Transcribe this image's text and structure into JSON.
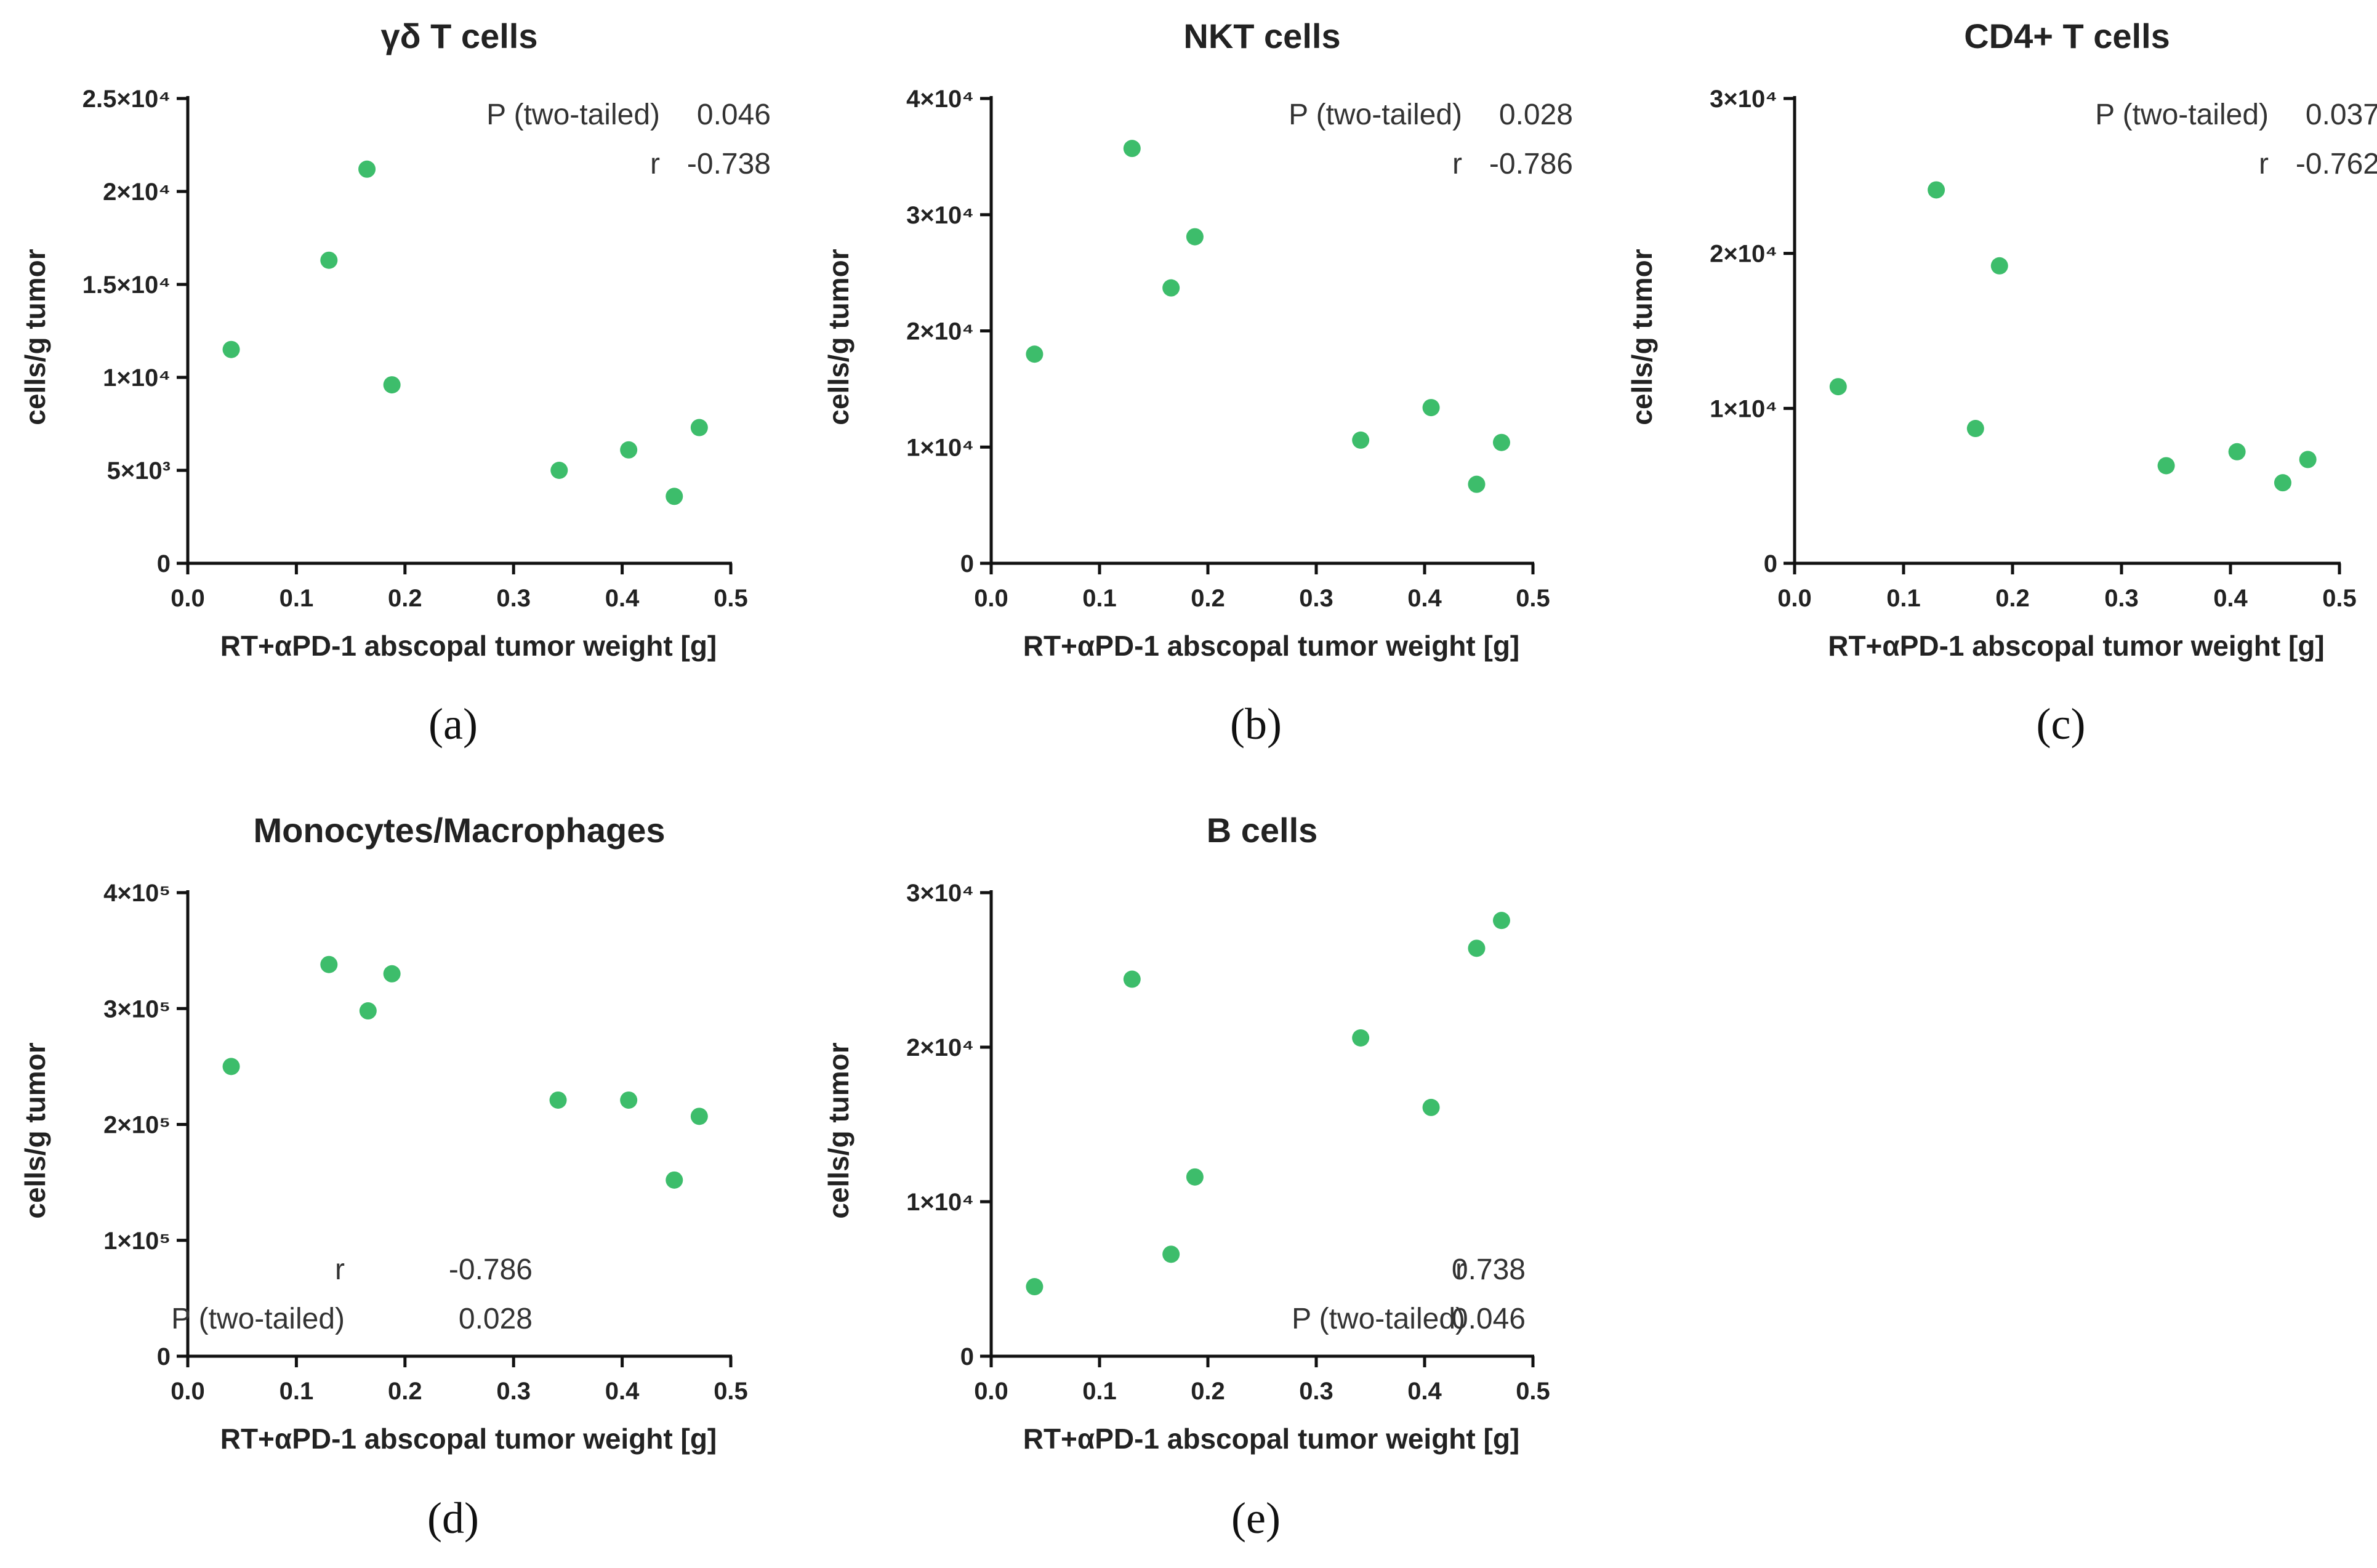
{
  "chart_data": [
    {
      "id": "a",
      "type": "scatter",
      "title": "γδ T cells",
      "xlabel": "RT+αPD-1 abscopal tumor weight [g]",
      "ylabel": "cells/g tumor",
      "xlim": [
        0,
        0.5
      ],
      "ylim": [
        0,
        25000
      ],
      "xticks": [
        "0.0",
        "0.1",
        "0.2",
        "0.3",
        "0.4",
        "0.5"
      ],
      "yticks": [
        {
          "value": 0,
          "label": "0"
        },
        {
          "value": 5000,
          "label": "5×10³"
        },
        {
          "value": 10000,
          "label": "1×10⁴"
        },
        {
          "value": 15000,
          "label": "1.5×10⁴"
        },
        {
          "value": 20000,
          "label": "2×10⁴"
        },
        {
          "value": 25000,
          "label": "2.5×10⁴"
        }
      ],
      "points": [
        {
          "x": 0.04,
          "y": 11500
        },
        {
          "x": 0.13,
          "y": 16300
        },
        {
          "x": 0.165,
          "y": 21200
        },
        {
          "x": 0.188,
          "y": 9600
        },
        {
          "x": 0.342,
          "y": 5000
        },
        {
          "x": 0.406,
          "y": 6100
        },
        {
          "x": 0.448,
          "y": 3600
        },
        {
          "x": 0.471,
          "y": 7300
        }
      ],
      "stats": [
        {
          "label": "P (two-tailed)",
          "value": "0.046"
        },
        {
          "label": "r",
          "value": "-0.738"
        }
      ],
      "stats_position": "top-right",
      "panel_label": "(a)"
    },
    {
      "id": "b",
      "type": "scatter",
      "title": "NKT cells",
      "xlabel": "RT+αPD-1 abscopal tumor weight [g]",
      "ylabel": "cells/g tumor",
      "xlim": [
        0,
        0.5
      ],
      "ylim": [
        0,
        40000
      ],
      "xticks": [
        "0.0",
        "0.1",
        "0.2",
        "0.3",
        "0.4",
        "0.5"
      ],
      "yticks": [
        {
          "value": 0,
          "label": "0"
        },
        {
          "value": 10000,
          "label": "1×10⁴"
        },
        {
          "value": 20000,
          "label": "2×10⁴"
        },
        {
          "value": 30000,
          "label": "3×10⁴"
        },
        {
          "value": 40000,
          "label": "4×10⁴"
        }
      ],
      "points": [
        {
          "x": 0.04,
          "y": 18000
        },
        {
          "x": 0.13,
          "y": 35700
        },
        {
          "x": 0.166,
          "y": 23700
        },
        {
          "x": 0.188,
          "y": 28100
        },
        {
          "x": 0.341,
          "y": 10600
        },
        {
          "x": 0.406,
          "y": 13400
        },
        {
          "x": 0.448,
          "y": 6800
        },
        {
          "x": 0.471,
          "y": 10400
        }
      ],
      "stats": [
        {
          "label": "P (two-tailed)",
          "value": "0.028"
        },
        {
          "label": "r",
          "value": "-0.786"
        }
      ],
      "stats_position": "top-right",
      "panel_label": "(b)"
    },
    {
      "id": "c",
      "type": "scatter",
      "title": "CD4+ T cells",
      "xlabel": "RT+αPD-1 abscopal tumor weight [g]",
      "ylabel": "cells/g tumor",
      "xlim": [
        0,
        0.5
      ],
      "ylim": [
        0,
        30000
      ],
      "xticks": [
        "0.0",
        "0.1",
        "0.2",
        "0.3",
        "0.4",
        "0.5"
      ],
      "yticks": [
        {
          "value": 0,
          "label": "0"
        },
        {
          "value": 10000,
          "label": "1×10⁴"
        },
        {
          "value": 20000,
          "label": "2×10⁴"
        },
        {
          "value": 30000,
          "label": "3×10⁴"
        }
      ],
      "points": [
        {
          "x": 0.04,
          "y": 11400
        },
        {
          "x": 0.13,
          "y": 24100
        },
        {
          "x": 0.166,
          "y": 8700
        },
        {
          "x": 0.188,
          "y": 19200
        },
        {
          "x": 0.341,
          "y": 6300
        },
        {
          "x": 0.406,
          "y": 7200
        },
        {
          "x": 0.448,
          "y": 5200
        },
        {
          "x": 0.471,
          "y": 6700
        }
      ],
      "stats": [
        {
          "label": "P (two-tailed)",
          "value": "0.037"
        },
        {
          "label": "r",
          "value": "-0.762"
        }
      ],
      "stats_position": "top-right",
      "panel_label": "(c)"
    },
    {
      "id": "d",
      "type": "scatter",
      "title": "Monocytes/Macrophages",
      "xlabel": "RT+αPD-1 abscopal tumor weight [g]",
      "ylabel": "cells/g tumor",
      "xlim": [
        0,
        0.5
      ],
      "ylim": [
        0,
        400000
      ],
      "xticks": [
        "0.0",
        "0.1",
        "0.2",
        "0.3",
        "0.4",
        "0.5"
      ],
      "yticks": [
        {
          "value": 0,
          "label": "0"
        },
        {
          "value": 100000,
          "label": "1×10⁵"
        },
        {
          "value": 200000,
          "label": "2×10⁵"
        },
        {
          "value": 300000,
          "label": "3×10⁵"
        },
        {
          "value": 400000,
          "label": "4×10⁵"
        }
      ],
      "points": [
        {
          "x": 0.04,
          "y": 250000
        },
        {
          "x": 0.13,
          "y": 338000
        },
        {
          "x": 0.166,
          "y": 298000
        },
        {
          "x": 0.188,
          "y": 330000
        },
        {
          "x": 0.341,
          "y": 221000
        },
        {
          "x": 0.406,
          "y": 221000
        },
        {
          "x": 0.448,
          "y": 152000
        },
        {
          "x": 0.471,
          "y": 207000
        }
      ],
      "stats": [
        {
          "label": "r",
          "value": "-0.786"
        },
        {
          "label": "P (two-tailed)",
          "value": "0.028"
        }
      ],
      "stats_position": "bottom-center",
      "panel_label": "(d)"
    },
    {
      "id": "e",
      "type": "scatter",
      "title": "B cells",
      "xlabel": "RT+αPD-1 abscopal tumor weight [g]",
      "ylabel": "cells/g tumor",
      "xlim": [
        0,
        0.5
      ],
      "ylim": [
        0,
        30000
      ],
      "xticks": [
        "0.0",
        "0.1",
        "0.2",
        "0.3",
        "0.4",
        "0.5"
      ],
      "yticks": [
        {
          "value": 0,
          "label": "0"
        },
        {
          "value": 10000,
          "label": "1×10⁴"
        },
        {
          "value": 20000,
          "label": "2×10⁴"
        },
        {
          "value": 30000,
          "label": "3×10⁴"
        }
      ],
      "points": [
        {
          "x": 0.04,
          "y": 4500
        },
        {
          "x": 0.13,
          "y": 24400
        },
        {
          "x": 0.166,
          "y": 6600
        },
        {
          "x": 0.188,
          "y": 11600
        },
        {
          "x": 0.341,
          "y": 20600
        },
        {
          "x": 0.406,
          "y": 16100
        },
        {
          "x": 0.448,
          "y": 26400
        },
        {
          "x": 0.471,
          "y": 28200
        }
      ],
      "stats": [
        {
          "label": "r",
          "value": "0.738"
        },
        {
          "label": "P (two-tailed)",
          "value": "0.046"
        }
      ],
      "stats_position": "bottom-right",
      "panel_label": "(e)"
    }
  ],
  "colors": {
    "point": "#3dbd6b",
    "axis": "#111111",
    "text": "#222222"
  }
}
